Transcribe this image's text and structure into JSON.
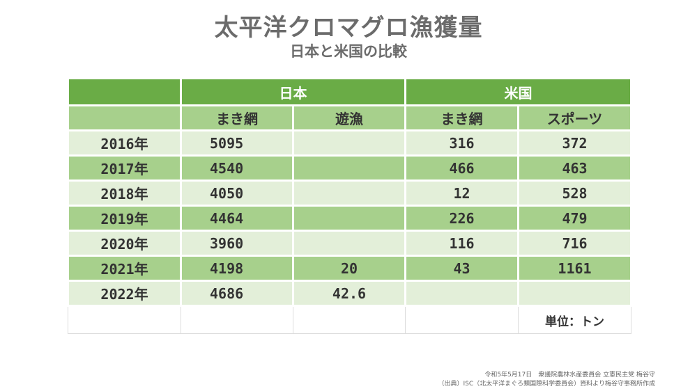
{
  "title": "太平洋クロマグロ漁獲量",
  "subtitle": "日本と米国の比較",
  "chart_data": {
    "type": "table",
    "groups": [
      "日本",
      "米国"
    ],
    "columns": [
      "まき網",
      "遊漁",
      "まき網",
      "スポーツ"
    ],
    "rows": [
      {
        "year": "2016年",
        "cells": [
          "5095",
          "",
          "316",
          "372"
        ]
      },
      {
        "year": "2017年",
        "cells": [
          "4540",
          "",
          "466",
          "463"
        ]
      },
      {
        "year": "2018年",
        "cells": [
          "4050",
          "",
          "12",
          "528"
        ]
      },
      {
        "year": "2019年",
        "cells": [
          "4464",
          "",
          "226",
          "479"
        ]
      },
      {
        "year": "2020年",
        "cells": [
          "3960",
          "",
          "116",
          "716"
        ]
      },
      {
        "year": "2021年",
        "cells": [
          "4198",
          "20",
          "43",
          "1161"
        ]
      },
      {
        "year": "2022年",
        "cells": [
          "4686",
          "42.6",
          "",
          ""
        ]
      }
    ],
    "unit_label": "単位：トン"
  },
  "footnotes": [
    "令和5年5月17日　衆議院農林水産委員会 立憲民主党 梅谷守",
    "（出典）ISC（北太平洋まぐろ類国際科学委員会）資料より梅谷守事務所作成"
  ]
}
